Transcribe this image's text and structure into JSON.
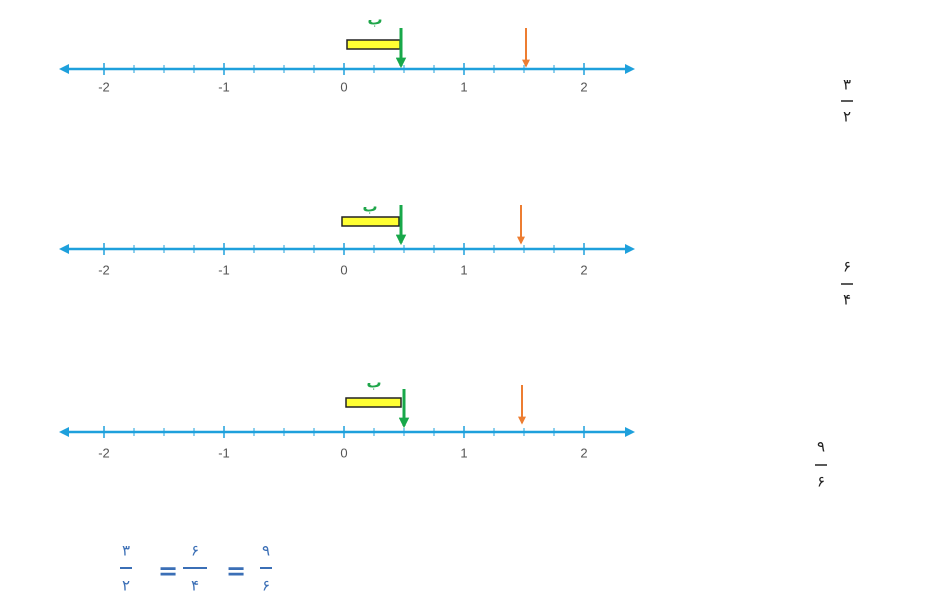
{
  "number_lines": [
    {
      "ticks": [
        -2,
        -1,
        0,
        1,
        2
      ],
      "marker_label": "ب",
      "fraction": {
        "numerator": "۳",
        "denominator": "۲"
      }
    },
    {
      "ticks": [
        -2,
        -1,
        0,
        1,
        2
      ],
      "marker_label": "ب",
      "fraction": {
        "numerator": "۶",
        "denominator": "۴"
      }
    },
    {
      "ticks": [
        -2,
        -1,
        0,
        1,
        2
      ],
      "marker_label": "ب",
      "fraction": {
        "numerator": "۹",
        "denominator": "۶"
      }
    }
  ],
  "equation": {
    "terms": [
      {
        "numerator": "۳",
        "denominator": "۲"
      },
      {
        "numerator": "۶",
        "denominator": "۴"
      },
      {
        "numerator": "۹",
        "denominator": "۶"
      }
    ],
    "signs": [
      "=",
      "="
    ]
  }
}
